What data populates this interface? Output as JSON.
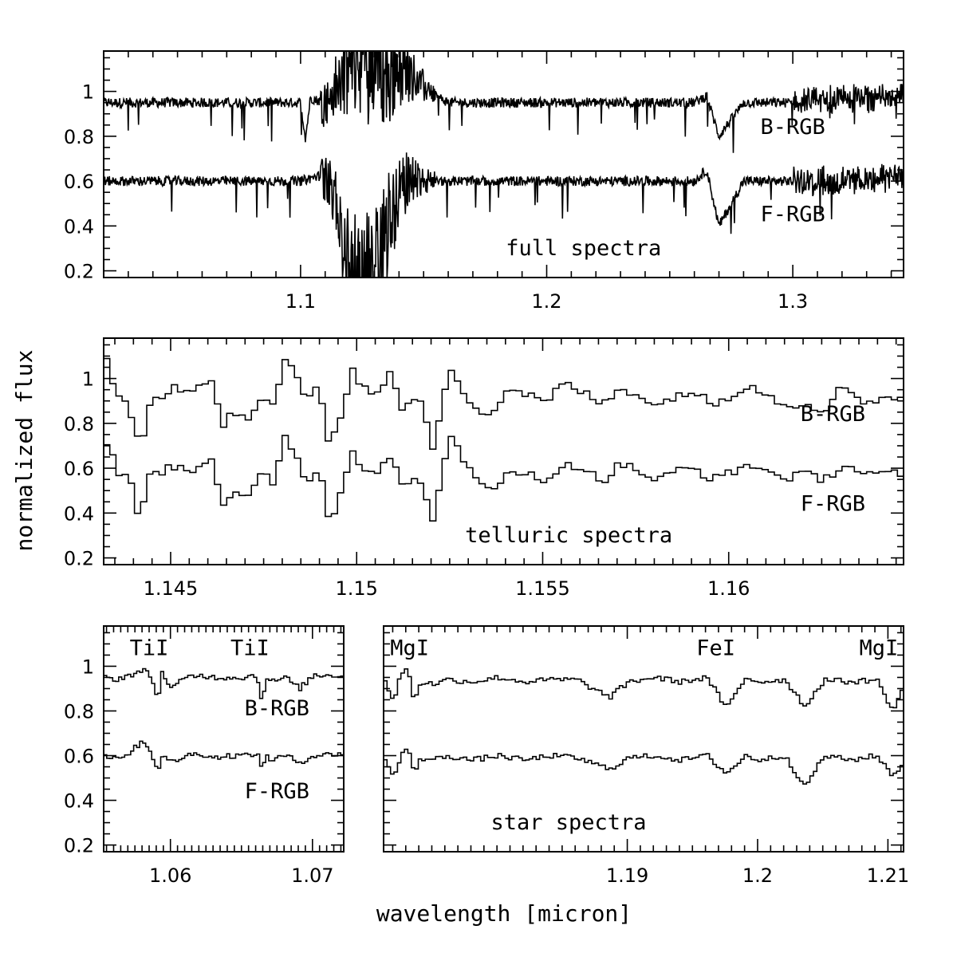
{
  "xlabel": "wavelength [micron]",
  "ylabel": "normalized flux",
  "chart_data": [
    {
      "type": "line",
      "panel": "full",
      "xlim": [
        1.02,
        1.345
      ],
      "ylim": [
        0.17,
        1.18
      ],
      "xticks_major": [
        1.1,
        1.2,
        1.3
      ],
      "xtick_labels": [
        "1.1",
        "1.2",
        "1.3"
      ],
      "yticks_major": [
        0.2,
        0.4,
        0.6,
        0.8,
        1.0
      ],
      "ytick_labels": [
        "0.2",
        "0.4",
        "0.6",
        "0.8",
        "1"
      ],
      "annotations": [
        {
          "text": "B-RGB",
          "x": 1.3,
          "y": 0.81
        },
        {
          "text": "F-RGB",
          "x": 1.3,
          "y": 0.42
        },
        {
          "text": "full spectra",
          "x": 1.215,
          "y": 0.27
        }
      ],
      "series": [
        {
          "base": 0.95,
          "x": [
            1.02,
            1.04,
            1.06,
            1.08,
            1.1,
            1.102,
            1.104,
            1.11,
            1.115,
            1.12,
            1.125,
            1.13,
            1.135,
            1.14,
            1.145,
            1.15,
            1.155,
            1.16,
            1.18,
            1.2,
            1.22,
            1.24,
            1.26,
            1.265,
            1.27,
            1.28,
            1.3,
            1.32,
            1.345
          ],
          "y": [
            0.95,
            0.95,
            0.95,
            0.95,
            0.95,
            0.79,
            0.97,
            0.95,
            1.02,
            1.12,
            1.15,
            1.18,
            1.05,
            1.12,
            1.08,
            1.02,
            0.98,
            0.95,
            0.95,
            0.95,
            0.95,
            0.95,
            0.95,
            0.98,
            0.8,
            0.95,
            0.95,
            0.97,
            0.98
          ]
        },
        {
          "base": 0.6,
          "x": [
            1.02,
            1.04,
            1.06,
            1.08,
            1.1,
            1.11,
            1.115,
            1.12,
            1.125,
            1.13,
            1.135,
            1.14,
            1.145,
            1.15,
            1.155,
            1.16,
            1.18,
            1.2,
            1.22,
            1.24,
            1.26,
            1.265,
            1.27,
            1.28,
            1.3,
            1.32,
            1.345
          ],
          "y": [
            0.6,
            0.6,
            0.6,
            0.6,
            0.6,
            0.63,
            0.45,
            0.2,
            0.18,
            0.22,
            0.4,
            0.55,
            0.62,
            0.6,
            0.6,
            0.6,
            0.6,
            0.6,
            0.6,
            0.6,
            0.6,
            0.65,
            0.4,
            0.6,
            0.6,
            0.6,
            0.62
          ]
        }
      ]
    },
    {
      "type": "line",
      "panel": "telluric",
      "xlim": [
        1.1432,
        1.1647
      ],
      "ylim": [
        0.17,
        1.18
      ],
      "xticks_major": [
        1.145,
        1.15,
        1.155,
        1.16
      ],
      "xtick_labels": [
        "1.145",
        "1.15",
        "1.155",
        "1.16"
      ],
      "yticks_major": [
        0.2,
        0.4,
        0.6,
        0.8,
        1.0
      ],
      "ytick_labels": [
        "0.2",
        "0.4",
        "0.6",
        "0.8",
        "1"
      ],
      "annotations": [
        {
          "text": "B-RGB",
          "x": 1.1628,
          "y": 0.81
        },
        {
          "text": "F-RGB",
          "x": 1.1628,
          "y": 0.41
        },
        {
          "text": "telluric spectra",
          "x": 1.1557,
          "y": 0.27
        }
      ],
      "series": [
        {
          "x": [
            1.1432,
            1.1435,
            1.1438,
            1.1441,
            1.1444,
            1.1447,
            1.145,
            1.1455,
            1.146,
            1.1463,
            1.1466,
            1.147,
            1.1474,
            1.1477,
            1.148,
            1.1483,
            1.1486,
            1.1489,
            1.1492,
            1.1495,
            1.1498,
            1.1501,
            1.1504,
            1.1508,
            1.1512,
            1.1516,
            1.152,
            1.1524,
            1.1528,
            1.1532,
            1.1536,
            1.154,
            1.1545,
            1.155,
            1.1555,
            1.156,
            1.1565,
            1.157,
            1.1575,
            1.158,
            1.1585,
            1.159,
            1.1595,
            1.16,
            1.1605,
            1.161,
            1.1615,
            1.162,
            1.1625,
            1.163,
            1.1635,
            1.164,
            1.1647
          ],
          "y": [
            1.07,
            0.91,
            0.88,
            0.69,
            0.93,
            0.92,
            0.97,
            0.94,
            1.0,
            0.78,
            0.86,
            0.8,
            0.92,
            0.87,
            1.1,
            1.02,
            0.89,
            0.96,
            0.7,
            0.85,
            1.04,
            0.96,
            0.93,
            1.02,
            0.85,
            0.93,
            0.66,
            1.07,
            0.94,
            0.86,
            0.85,
            0.96,
            0.93,
            0.89,
            0.98,
            0.94,
            0.88,
            0.96,
            0.93,
            0.87,
            0.93,
            0.94,
            0.88,
            0.93,
            0.98,
            0.92,
            0.88,
            0.89,
            0.86,
            0.97,
            0.9,
            0.91,
            0.92
          ]
        },
        {
          "x": [
            1.1432,
            1.1435,
            1.1438,
            1.1441,
            1.1444,
            1.1447,
            1.145,
            1.1455,
            1.146,
            1.1463,
            1.1466,
            1.147,
            1.1474,
            1.1477,
            1.148,
            1.1483,
            1.1486,
            1.1489,
            1.1492,
            1.1495,
            1.1498,
            1.1501,
            1.1504,
            1.1508,
            1.1512,
            1.1516,
            1.152,
            1.1524,
            1.1528,
            1.1532,
            1.1536,
            1.154,
            1.1545,
            1.155,
            1.1555,
            1.156,
            1.1565,
            1.157,
            1.1575,
            1.158,
            1.1585,
            1.159,
            1.1595,
            1.16,
            1.1605,
            1.161,
            1.1615,
            1.162,
            1.1625,
            1.163,
            1.1635,
            1.164,
            1.1647
          ],
          "y": [
            0.72,
            0.58,
            0.56,
            0.36,
            0.62,
            0.58,
            0.61,
            0.59,
            0.66,
            0.44,
            0.49,
            0.46,
            0.58,
            0.53,
            0.75,
            0.66,
            0.52,
            0.62,
            0.34,
            0.5,
            0.69,
            0.6,
            0.58,
            0.66,
            0.5,
            0.57,
            0.35,
            0.77,
            0.62,
            0.53,
            0.5,
            0.6,
            0.58,
            0.52,
            0.63,
            0.6,
            0.54,
            0.62,
            0.59,
            0.54,
            0.59,
            0.6,
            0.55,
            0.58,
            0.62,
            0.58,
            0.56,
            0.57,
            0.55,
            0.62,
            0.58,
            0.57,
            0.58
          ]
        }
      ]
    },
    {
      "type": "line",
      "panel": "star-left",
      "xlim": [
        1.0553,
        1.0722
      ],
      "ylim": [
        0.17,
        1.18
      ],
      "xticks_major": [
        1.06,
        1.07
      ],
      "xtick_labels": [
        "1.06",
        "1.07"
      ],
      "yticks_major": [
        0.2,
        0.4,
        0.6,
        0.8,
        1.0
      ],
      "ytick_labels": [
        "0.2",
        "0.4",
        "0.6",
        "0.8",
        "1"
      ],
      "annotations": [
        {
          "text": "TiI",
          "x": 1.0585,
          "y": 1.05
        },
        {
          "text": "TiI",
          "x": 1.0656,
          "y": 1.05
        },
        {
          "text": "B-RGB",
          "x": 1.0675,
          "y": 0.78
        },
        {
          "text": "F-RGB",
          "x": 1.0675,
          "y": 0.41
        }
      ],
      "series": [
        {
          "x": [
            1.0553,
            1.056,
            1.057,
            1.058,
            1.0585,
            1.059,
            1.0593,
            1.0597,
            1.06,
            1.061,
            1.062,
            1.063,
            1.064,
            1.065,
            1.066,
            1.0663,
            1.0667,
            1.067,
            1.068,
            1.069,
            1.07,
            1.0722
          ],
          "y": [
            0.95,
            0.94,
            0.96,
            0.98,
            0.96,
            0.85,
            0.97,
            0.93,
            0.9,
            0.95,
            0.96,
            0.95,
            0.95,
            0.95,
            0.96,
            0.85,
            0.95,
            0.93,
            0.95,
            0.9,
            0.96,
            0.96
          ]
        },
        {
          "x": [
            1.0553,
            1.056,
            1.057,
            1.058,
            1.0585,
            1.059,
            1.0593,
            1.0597,
            1.06,
            1.061,
            1.062,
            1.063,
            1.064,
            1.065,
            1.066,
            1.0663,
            1.0667,
            1.067,
            1.068,
            1.069,
            1.07,
            1.0722
          ],
          "y": [
            0.6,
            0.59,
            0.61,
            0.67,
            0.62,
            0.53,
            0.6,
            0.58,
            0.57,
            0.6,
            0.61,
            0.59,
            0.6,
            0.6,
            0.61,
            0.55,
            0.6,
            0.58,
            0.6,
            0.57,
            0.6,
            0.61
          ]
        }
      ]
    },
    {
      "type": "line",
      "panel": "star-right",
      "xlim": [
        1.1713,
        1.2112
      ],
      "ylim": [
        0.17,
        1.18
      ],
      "xticks_major": [
        1.19,
        1.2,
        1.21
      ],
      "xtick_labels": [
        "1.19",
        "1.2",
        "1.21"
      ],
      "yticks_major": [
        0.2,
        0.4,
        0.6,
        0.8,
        1.0
      ],
      "ytick_labels": [
        "0.2",
        "0.4",
        "0.6",
        "0.8",
        "1"
      ],
      "annotations": [
        {
          "text": "MgI",
          "x": 1.1733,
          "y": 1.05
        },
        {
          "text": "FeI",
          "x": 1.1968,
          "y": 1.05
        },
        {
          "text": "MgI",
          "x": 1.2093,
          "y": 1.05
        },
        {
          "text": "star spectra",
          "x": 1.1855,
          "y": 0.27
        }
      ],
      "series": [
        {
          "x": [
            1.1713,
            1.172,
            1.1725,
            1.173,
            1.1735,
            1.174,
            1.175,
            1.176,
            1.178,
            1.18,
            1.182,
            1.184,
            1.186,
            1.1885,
            1.19,
            1.192,
            1.194,
            1.196,
            1.1975,
            1.199,
            1.2,
            1.202,
            1.2035,
            1.205,
            1.207,
            1.209,
            1.2103,
            1.2112
          ],
          "y": [
            0.93,
            0.84,
            0.97,
            1.0,
            0.84,
            0.93,
            0.92,
            0.94,
            0.93,
            0.95,
            0.93,
            0.94,
            0.94,
            0.86,
            0.93,
            0.95,
            0.93,
            0.95,
            0.81,
            0.95,
            0.93,
            0.94,
            0.82,
            0.94,
            0.93,
            0.94,
            0.8,
            0.92
          ]
        },
        {
          "x": [
            1.1713,
            1.172,
            1.1725,
            1.173,
            1.1735,
            1.174,
            1.175,
            1.176,
            1.178,
            1.18,
            1.182,
            1.184,
            1.186,
            1.1885,
            1.19,
            1.192,
            1.194,
            1.196,
            1.1975,
            1.199,
            1.2,
            1.202,
            1.2035,
            1.205,
            1.207,
            1.209,
            1.2103,
            1.2112
          ],
          "y": [
            0.58,
            0.5,
            0.6,
            0.64,
            0.52,
            0.59,
            0.58,
            0.6,
            0.58,
            0.6,
            0.58,
            0.6,
            0.59,
            0.54,
            0.59,
            0.6,
            0.58,
            0.6,
            0.52,
            0.6,
            0.58,
            0.6,
            0.46,
            0.6,
            0.58,
            0.6,
            0.51,
            0.58
          ]
        }
      ]
    }
  ]
}
